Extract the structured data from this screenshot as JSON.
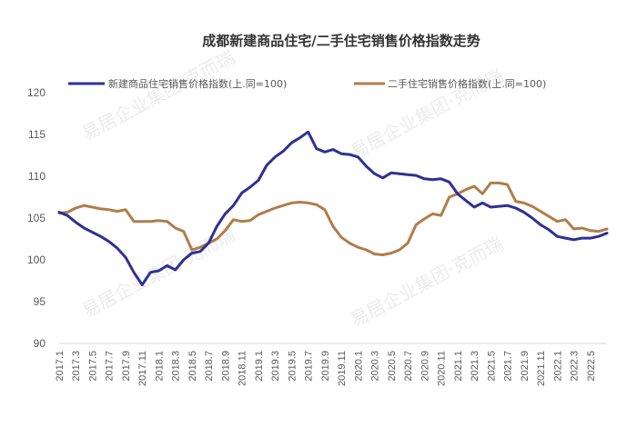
{
  "chart_data": {
    "type": "line",
    "title": "成都新建商品住宅/二手住宅销售价格指数走势",
    "ylim": [
      90,
      120
    ],
    "yticks": [
      90,
      95,
      100,
      105,
      110,
      115,
      120
    ],
    "xlabels": [
      "2017.1",
      "2017.3",
      "2017.5",
      "2017.7",
      "2017.9",
      "2017.11",
      "2018.1",
      "2018.3",
      "2018.5",
      "2018.7",
      "2018.9",
      "2018.11",
      "2019.1",
      "2019.3",
      "2019.5",
      "2019.7",
      "2019.9",
      "2019.11",
      "2020.1",
      "2020.3",
      "2020.5",
      "2020.7",
      "2020.9",
      "2020.11",
      "2021.1",
      "2021.3",
      "2021.5",
      "2021.7",
      "2021.9",
      "2021.11",
      "2022.1",
      "2022.3",
      "2022.5"
    ],
    "legend_position": "top",
    "watermark": "易居企业集团·克而瑞",
    "series": [
      {
        "name": "新建商品住宅销售价格指数(上.同=100)",
        "color": "#2E3192",
        "values": [
          105.7,
          105.3,
          104.5,
          103.8,
          103.3,
          102.8,
          102.2,
          101.4,
          100.3,
          98.5,
          97.0,
          98.5,
          98.7,
          99.3,
          98.8,
          100.0,
          100.8,
          101.0,
          102.0,
          104.0,
          105.5,
          106.5,
          108.0,
          108.7,
          109.5,
          111.3,
          112.3,
          113.0,
          114.0,
          114.6,
          115.3,
          113.3,
          112.9,
          113.2,
          112.7,
          112.6,
          112.3,
          111.2,
          110.3,
          109.8,
          110.4,
          110.3,
          110.2,
          110.1,
          109.7,
          109.6,
          109.7,
          109.3,
          107.9,
          107.1,
          106.3,
          106.8,
          106.3,
          106.4,
          106.5,
          106.2,
          105.7,
          105.0,
          104.2,
          103.6,
          102.8,
          102.6,
          102.4,
          102.6,
          102.6,
          102.8,
          103.2
        ]
      },
      {
        "name": "二手住宅销售价格指数(上.同=100)",
        "color": "#B07D4A",
        "values": [
          105.6,
          105.7,
          106.2,
          106.5,
          106.3,
          106.1,
          106.0,
          105.8,
          106.0,
          104.6,
          104.6,
          104.6,
          104.7,
          104.6,
          103.8,
          103.4,
          101.2,
          101.5,
          102.0,
          102.5,
          103.5,
          104.8,
          104.6,
          104.7,
          105.4,
          105.8,
          106.2,
          106.5,
          106.8,
          106.9,
          106.8,
          106.6,
          106.0,
          104.0,
          102.7,
          102.0,
          101.5,
          101.2,
          100.7,
          100.6,
          100.8,
          101.2,
          102.0,
          104.2,
          104.9,
          105.5,
          105.3,
          107.5,
          107.9,
          108.4,
          108.8,
          107.9,
          109.2,
          109.2,
          109.0,
          107.0,
          106.8,
          106.4,
          105.8,
          105.2,
          104.6,
          104.8,
          103.7,
          103.8,
          103.5,
          103.4,
          103.7
        ]
      }
    ]
  }
}
